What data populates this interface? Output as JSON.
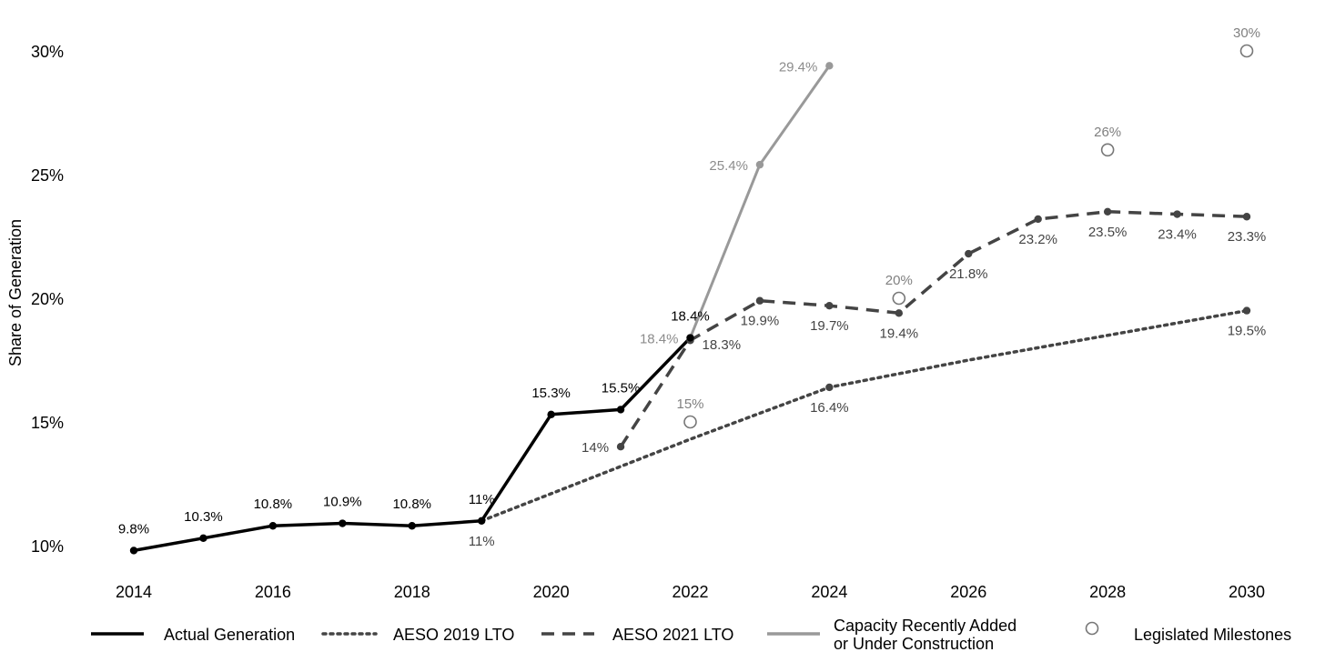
{
  "chart_data": {
    "type": "line",
    "ylabel": "Share of Generation",
    "xlabel": "",
    "xlim": [
      2013.6,
      2030.6
    ],
    "ylim": [
      9.5,
      31
    ],
    "x_ticks": [
      2014,
      2016,
      2018,
      2020,
      2022,
      2024,
      2026,
      2028,
      2030
    ],
    "y_ticks": [
      10,
      15,
      20,
      25,
      30
    ],
    "y_tick_labels": [
      "10%",
      "15%",
      "20%",
      "25%",
      "30%"
    ],
    "grid": false,
    "legend_position": "bottom",
    "series": [
      {
        "name": "Actual Generation",
        "style": "solid",
        "color": "#000000",
        "width": 3.5,
        "markers": true,
        "points": [
          {
            "x": 2014,
            "y": 9.8,
            "label": "9.8%",
            "pos": "above"
          },
          {
            "x": 2015,
            "y": 10.3,
            "label": "10.3%",
            "pos": "above"
          },
          {
            "x": 2016,
            "y": 10.8,
            "label": "10.8%",
            "pos": "above"
          },
          {
            "x": 2017,
            "y": 10.9,
            "label": "10.9%",
            "pos": "above"
          },
          {
            "x": 2018,
            "y": 10.8,
            "label": "10.8%",
            "pos": "above"
          },
          {
            "x": 2019,
            "y": 11.0,
            "label": "11%",
            "pos": "above"
          },
          {
            "x": 2020,
            "y": 15.3,
            "label": "15.3%",
            "pos": "above"
          },
          {
            "x": 2021,
            "y": 15.5,
            "label": "15.5%",
            "pos": "above"
          },
          {
            "x": 2022,
            "y": 18.4,
            "label": "18.4%",
            "pos": "above"
          }
        ]
      },
      {
        "name": "AESO 2019 LTO",
        "style": "dotted",
        "color": "#444444",
        "width": 3.5,
        "markers": false,
        "points": [
          {
            "x": 2019,
            "y": 11.0,
            "label": "11%",
            "pos": "below"
          },
          {
            "x": 2022,
            "y": 14.3,
            "label": null
          },
          {
            "x": 2024,
            "y": 16.4,
            "label": "16.4%",
            "pos": "below",
            "marker": true
          },
          {
            "x": 2026,
            "y": 17.5,
            "label": null
          },
          {
            "x": 2028,
            "y": 18.5,
            "label": null
          },
          {
            "x": 2030,
            "y": 19.5,
            "label": "19.5%",
            "pos": "below",
            "marker": true
          }
        ]
      },
      {
        "name": "AESO 2021 LTO",
        "style": "dashed",
        "color": "#444444",
        "width": 3.5,
        "markers": true,
        "points": [
          {
            "x": 2021,
            "y": 14.0,
            "label": "14%",
            "pos": "left"
          },
          {
            "x": 2022,
            "y": 18.3,
            "label": "18.3%",
            "pos": "right"
          },
          {
            "x": 2023,
            "y": 19.9,
            "label": "19.9%",
            "pos": "below"
          },
          {
            "x": 2024,
            "y": 19.7,
            "label": "19.7%",
            "pos": "below"
          },
          {
            "x": 2025,
            "y": 19.4,
            "label": "19.4%",
            "pos": "below"
          },
          {
            "x": 2026,
            "y": 21.8,
            "label": "21.8%",
            "pos": "below"
          },
          {
            "x": 2027,
            "y": 23.2,
            "label": "23.2%",
            "pos": "below"
          },
          {
            "x": 2028,
            "y": 23.5,
            "label": "23.5%",
            "pos": "below"
          },
          {
            "x": 2029,
            "y": 23.4,
            "label": "23.4%",
            "pos": "below"
          },
          {
            "x": 2030,
            "y": 23.3,
            "label": "23.3%",
            "pos": "below"
          }
        ]
      },
      {
        "name": "Capacity Recently Added or Under Construction",
        "style": "solid",
        "color": "#999999",
        "width": 3,
        "markers": true,
        "points": [
          {
            "x": 2022,
            "y": 18.4,
            "label": "18.4%",
            "pos": "left"
          },
          {
            "x": 2023,
            "y": 25.4,
            "label": "25.4%",
            "pos": "left"
          },
          {
            "x": 2024,
            "y": 29.4,
            "label": "29.4%",
            "pos": "left"
          }
        ]
      },
      {
        "name": "Legislated Milestones",
        "style": "open-circle",
        "color": "#777777",
        "points": [
          {
            "x": 2022,
            "y": 15,
            "label": "15%",
            "pos": "above"
          },
          {
            "x": 2025,
            "y": 20,
            "label": "20%",
            "pos": "above"
          },
          {
            "x": 2028,
            "y": 26,
            "label": "26%",
            "pos": "above"
          },
          {
            "x": 2030,
            "y": 30,
            "label": "30%",
            "pos": "above"
          }
        ]
      }
    ],
    "legend": [
      {
        "label_lines": [
          "Actual Generation"
        ],
        "style": "solid",
        "color": "#000000"
      },
      {
        "label_lines": [
          "AESO 2019 LTO"
        ],
        "style": "dotted",
        "color": "#444444"
      },
      {
        "label_lines": [
          "AESO 2021 LTO"
        ],
        "style": "dashed",
        "color": "#444444"
      },
      {
        "label_lines": [
          "Capacity Recently Added",
          "or Under Construction"
        ],
        "style": "solid",
        "color": "#999999"
      },
      {
        "label_lines": [
          "Legislated Milestones"
        ],
        "style": "open-circle",
        "color": "#777777"
      }
    ]
  }
}
